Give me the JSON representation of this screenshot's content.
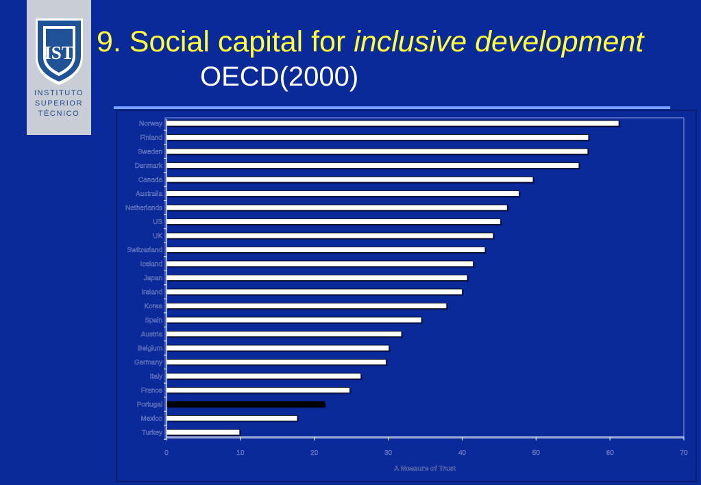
{
  "logo": {
    "letters": "IST",
    "line1": "INSTITUTO",
    "line2": "SUPERIOR",
    "line3": "TÉCNICO"
  },
  "header": {
    "title_prefix": "9. Social capital for ",
    "title_emphasis": "inclusive development",
    "subtitle": "OECD(2000)"
  },
  "colors": {
    "background": "#0b2a99",
    "title": "#ffff3a",
    "subtitle": "#ffffff",
    "bar_fill": "#ffffff",
    "highlight_fill": "#000000"
  },
  "chart_data": {
    "type": "bar",
    "orientation": "horizontal",
    "categories": [
      "Norway",
      "Finland",
      "Sweden",
      "Denmark",
      "Canada",
      "Australia",
      "Netherlands",
      "US",
      "UK",
      "Switzerland",
      "Iceland",
      "Japan",
      "Ireland",
      "Korea",
      "Spain",
      "Austria",
      "Belgium",
      "Germany",
      "Italy",
      "France",
      "Portugal",
      "Mexico",
      "Turkey"
    ],
    "values": [
      61.2,
      57.1,
      57.0,
      55.8,
      49.6,
      47.7,
      46.1,
      45.2,
      44.2,
      43.1,
      41.5,
      40.7,
      40.0,
      37.9,
      34.5,
      31.8,
      30.1,
      29.7,
      26.3,
      24.8,
      21.4,
      17.7,
      9.9
    ],
    "highlight": "Portugal",
    "xlabel": "A Measure of Trust",
    "ylabel": "",
    "xlim": [
      0,
      70
    ],
    "xticks": [
      0,
      10,
      20,
      30,
      40,
      50,
      60,
      70
    ],
    "grid": false,
    "legend": "none"
  }
}
